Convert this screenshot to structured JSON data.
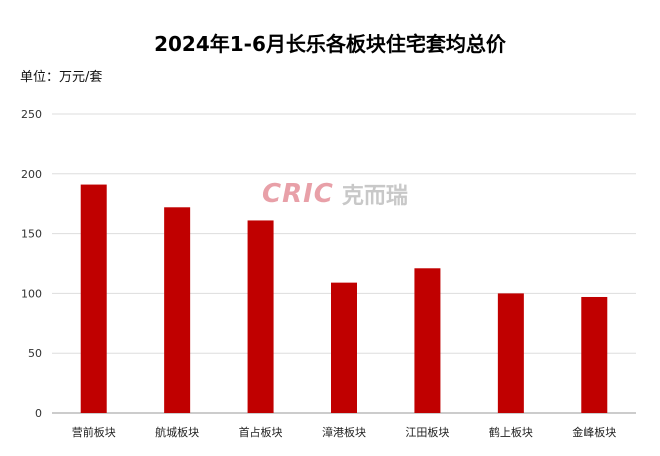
{
  "chart_data": {
    "type": "bar",
    "title": "2024年1-6月长乐各板块住宅套均总价",
    "unit_label": "单位：万元/套",
    "categories": [
      "营前板块",
      "航城板块",
      "首占板块",
      "漳港板块",
      "江田板块",
      "鹤上板块",
      "金峰板块"
    ],
    "values": [
      191,
      172,
      161,
      109,
      121,
      100,
      97
    ],
    "ylim": [
      0,
      250
    ],
    "yticks": [
      0,
      50,
      100,
      150,
      200,
      250
    ],
    "grid": true,
    "bar_color": "#c00000"
  },
  "watermark": {
    "logo_en": "CRIC",
    "logo_cn": "克而瑞"
  }
}
